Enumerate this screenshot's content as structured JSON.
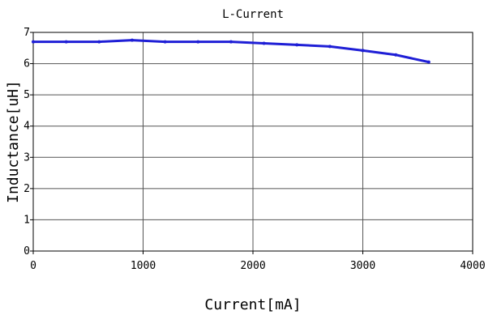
{
  "chart_data": {
    "type": "line",
    "title": "L-Current",
    "xlabel": "Current[mA]",
    "ylabel": "Inductance[uH]",
    "xlim": [
      0,
      4000
    ],
    "ylim": [
      0,
      7
    ],
    "xticks": [
      0,
      1000,
      2000,
      3000,
      4000
    ],
    "yticks": [
      0,
      1,
      2,
      3,
      4,
      5,
      6,
      7
    ],
    "xtick_labels": [
      "0",
      "1000",
      "2000",
      "3000",
      "4000"
    ],
    "ytick_labels": [
      "0",
      "1",
      "2",
      "3",
      "4",
      "5",
      "6",
      "7"
    ],
    "grid": true,
    "legend": "none",
    "series": [
      {
        "color": "#1f1fd6",
        "x": [
          0,
          300,
          600,
          900,
          1200,
          1500,
          1800,
          2100,
          2400,
          2700,
          3000,
          3300,
          3600
        ],
        "y": [
          6.7,
          6.7,
          6.7,
          6.75,
          6.7,
          6.7,
          6.7,
          6.65,
          6.6,
          6.55,
          6.42,
          6.28,
          6.05
        ]
      }
    ]
  }
}
